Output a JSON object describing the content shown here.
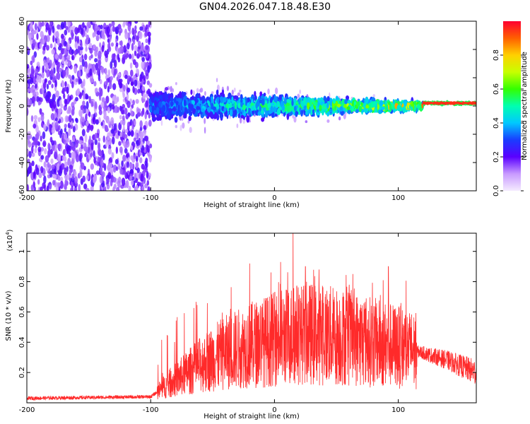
{
  "title": "GN04.2026.047.18.48.E30",
  "chart_data": [
    {
      "type": "heatmap",
      "xlabel": "Height of straight line (km)",
      "ylabel": "Frequency (Hz)",
      "xlim": [
        -200,
        163
      ],
      "ylim": [
        -60,
        60
      ],
      "xticks": [
        -200,
        -100,
        0,
        100
      ],
      "yticks": [
        -60,
        -40,
        -20,
        0,
        20,
        40,
        60
      ],
      "colorbar": {
        "label": "Normalized spectral amplitude",
        "range": [
          0,
          1
        ],
        "ticks": [
          "0.0",
          "0.2",
          "0.4",
          "0.6",
          "0.8"
        ]
      },
      "regions": [
        {
          "x": [
            -200,
            -100
          ],
          "description": "broadband noise across all frequencies",
          "amplitude": 0.15
        },
        {
          "x": [
            -100,
            120
          ],
          "center_hz": 0,
          "spread_hz": [
            15,
            4
          ],
          "amplitude": [
            0.2,
            0.6
          ]
        },
        {
          "x": [
            120,
            163
          ],
          "center_hz": 2,
          "spread_hz": 2,
          "amplitude": 0.95
        }
      ]
    },
    {
      "type": "line",
      "xlabel": "Height of straight line (km)",
      "ylabel": "SNR (10 * v/v)",
      "y_multiplier": "(x10^4)",
      "xlim": [
        -200,
        163
      ],
      "ylim": [
        0,
        1.12
      ],
      "xticks": [
        -200,
        -100,
        0,
        100
      ],
      "yticks": [
        0.2,
        0.4,
        0.6,
        0.8,
        1
      ],
      "series": [
        {
          "name": "SNR",
          "color": "#ff2a2a",
          "envelope_x": [
            -200,
            -100,
            -90,
            -80,
            -60,
            -40,
            -20,
            0,
            20,
            40,
            60,
            80,
            100,
            120,
            140,
            163
          ],
          "envelope_y": [
            0.03,
            0.04,
            0.1,
            0.15,
            0.25,
            0.33,
            0.38,
            0.42,
            0.46,
            0.45,
            0.43,
            0.4,
            0.37,
            0.33,
            0.28,
            0.2
          ],
          "peaks": [
            {
              "x": 15,
              "y": 1.12
            },
            {
              "x": 25,
              "y": 0.9
            },
            {
              "x": -20,
              "y": 0.92
            },
            {
              "x": 5,
              "y": 0.93
            },
            {
              "x": 36,
              "y": 0.88
            },
            {
              "x": 92,
              "y": 0.9
            }
          ]
        }
      ]
    }
  ]
}
